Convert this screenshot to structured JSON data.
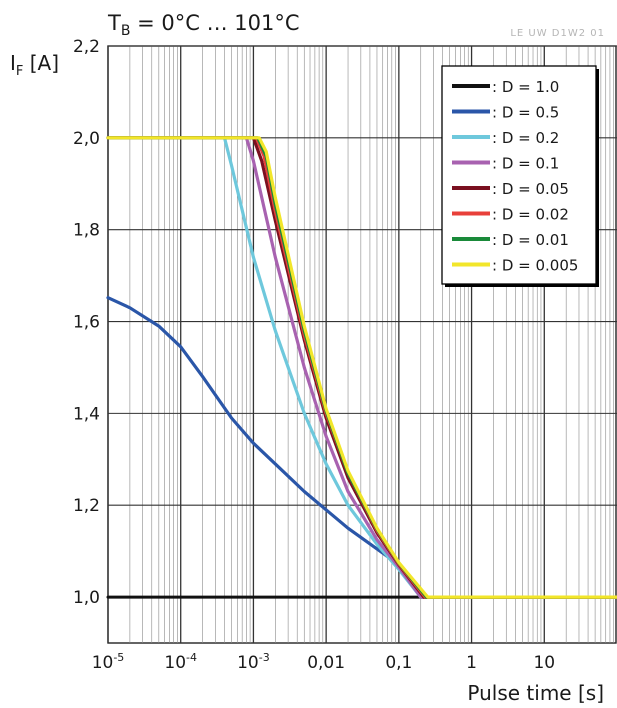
{
  "chart_data": {
    "type": "line",
    "title_base": "T",
    "title_sub": "B",
    "title_rest": " = 0°C  …  101°C",
    "doc_code": "LE UW D1W2 01",
    "ylabel_base": "I",
    "ylabel_sub": "F",
    "ylabel_rest": " [A]",
    "xlabel": "Pulse time  [s]",
    "x_scale": "log",
    "xlim": [
      1e-05,
      100
    ],
    "ylim": [
      0.9,
      2.2
    ],
    "y_ticks": [
      {
        "value": 1.0,
        "label": "1,0"
      },
      {
        "value": 1.2,
        "label": "1,2"
      },
      {
        "value": 1.4,
        "label": "1,4"
      },
      {
        "value": 1.6,
        "label": "1,6"
      },
      {
        "value": 1.8,
        "label": "1,8"
      },
      {
        "value": 2.0,
        "label": "2,0"
      },
      {
        "value": 2.2,
        "label": "2,2"
      }
    ],
    "x_ticks": [
      {
        "value": 1e-05,
        "base": "10",
        "exp": "-5"
      },
      {
        "value": 0.0001,
        "base": "10",
        "exp": "-4"
      },
      {
        "value": 0.001,
        "base": "10",
        "exp": "-3"
      },
      {
        "value": 0.01,
        "base": "0,01",
        "exp": ""
      },
      {
        "value": 0.1,
        "base": "0,1",
        "exp": ""
      },
      {
        "value": 1,
        "base": "1",
        "exp": ""
      },
      {
        "value": 10,
        "base": "10",
        "exp": ""
      }
    ],
    "grid": true,
    "legend_position": "top-right",
    "series": [
      {
        "name": ": D = 1.0",
        "color": "#111111",
        "points": [
          [
            1e-05,
            1.0
          ],
          [
            100,
            1.0
          ]
        ]
      },
      {
        "name": ": D = 0.5",
        "color": "#2a56a8",
        "points": [
          [
            1e-05,
            1.652
          ],
          [
            2e-05,
            1.63
          ],
          [
            5e-05,
            1.59
          ],
          [
            0.0001,
            1.545
          ],
          [
            0.0002,
            1.48
          ],
          [
            0.0005,
            1.39
          ],
          [
            0.001,
            1.335
          ],
          [
            0.002,
            1.29
          ],
          [
            0.005,
            1.23
          ],
          [
            0.01,
            1.19
          ],
          [
            0.02,
            1.15
          ],
          [
            0.05,
            1.105
          ],
          [
            0.1,
            1.07
          ],
          [
            0.15,
            1.035
          ],
          [
            0.2,
            1.0
          ],
          [
            100,
            1.0
          ]
        ]
      },
      {
        "name": ": D = 0.2",
        "color": "#6ec8dc",
        "points": [
          [
            1e-05,
            2.0
          ],
          [
            0.0004,
            2.0
          ],
          [
            0.0005,
            1.94
          ],
          [
            0.001,
            1.74
          ],
          [
            0.002,
            1.58
          ],
          [
            0.005,
            1.4
          ],
          [
            0.01,
            1.29
          ],
          [
            0.02,
            1.2
          ],
          [
            0.05,
            1.115
          ],
          [
            0.1,
            1.06
          ],
          [
            0.2,
            1.0
          ],
          [
            100,
            1.0
          ]
        ]
      },
      {
        "name": ": D = 0.1",
        "color": "#a862b0",
        "points": [
          [
            1e-05,
            2.0
          ],
          [
            0.0008,
            2.0
          ],
          [
            0.001,
            1.95
          ],
          [
            0.002,
            1.74
          ],
          [
            0.005,
            1.5
          ],
          [
            0.01,
            1.35
          ],
          [
            0.02,
            1.23
          ],
          [
            0.05,
            1.125
          ],
          [
            0.1,
            1.065
          ],
          [
            0.2,
            1.0
          ],
          [
            100,
            1.0
          ]
        ]
      },
      {
        "name": ": D = 0.05",
        "color": "#7a1020",
        "points": [
          [
            1e-05,
            2.0
          ],
          [
            0.001,
            2.0
          ],
          [
            0.0013,
            1.95
          ],
          [
            0.002,
            1.82
          ],
          [
            0.005,
            1.56
          ],
          [
            0.01,
            1.39
          ],
          [
            0.02,
            1.26
          ],
          [
            0.05,
            1.14
          ],
          [
            0.1,
            1.07
          ],
          [
            0.22,
            1.0
          ],
          [
            100,
            1.0
          ]
        ]
      },
      {
        "name": ": D = 0.02",
        "color": "#e8403a",
        "points": [
          [
            1e-05,
            2.0
          ],
          [
            0.0011,
            2.0
          ],
          [
            0.0014,
            1.96
          ],
          [
            0.002,
            1.84
          ],
          [
            0.005,
            1.57
          ],
          [
            0.01,
            1.4
          ],
          [
            0.02,
            1.27
          ],
          [
            0.05,
            1.145
          ],
          [
            0.1,
            1.072
          ],
          [
            0.23,
            1.0
          ],
          [
            100,
            1.0
          ]
        ]
      },
      {
        "name": ": D = 0.01",
        "color": "#1a8a3a",
        "points": [
          [
            1e-05,
            2.0
          ],
          [
            0.00115,
            2.0
          ],
          [
            0.0015,
            1.96
          ],
          [
            0.002,
            1.855
          ],
          [
            0.005,
            1.58
          ],
          [
            0.01,
            1.405
          ],
          [
            0.02,
            1.27
          ],
          [
            0.05,
            1.148
          ],
          [
            0.1,
            1.074
          ],
          [
            0.24,
            1.0
          ],
          [
            100,
            1.0
          ]
        ]
      },
      {
        "name": ": D = 0.005",
        "color": "#f2e62a",
        "points": [
          [
            1e-05,
            2.0
          ],
          [
            0.0012,
            2.0
          ],
          [
            0.0015,
            1.97
          ],
          [
            0.002,
            1.87
          ],
          [
            0.005,
            1.59
          ],
          [
            0.01,
            1.41
          ],
          [
            0.02,
            1.275
          ],
          [
            0.05,
            1.15
          ],
          [
            0.1,
            1.075
          ],
          [
            0.25,
            1.0
          ],
          [
            100,
            1.0
          ]
        ]
      }
    ]
  }
}
